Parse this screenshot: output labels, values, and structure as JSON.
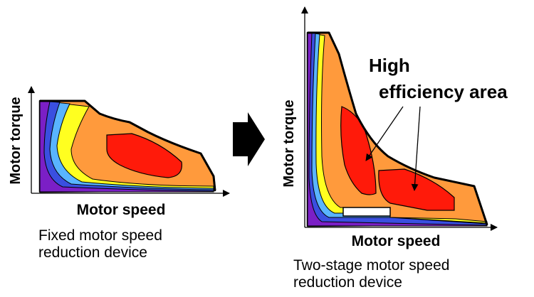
{
  "left_panel": {
    "x_axis_label": "Motor speed",
    "y_axis_label": "Motor torque",
    "caption_line1": "Fixed motor speed",
    "caption_line2": "reduction device"
  },
  "right_panel": {
    "x_axis_label": "Motor speed",
    "y_axis_label": "Motor torque",
    "callout_line1": "High",
    "callout_line2": "efficiency area",
    "caption_line1": "Two-stage motor speed",
    "caption_line2": "reduction device"
  },
  "colors": {
    "red": "#ff1a0a",
    "orange": "#ff9a3c",
    "yellow": "#ffff20",
    "light_blue": "#59b4ff",
    "blue": "#3a4fe0",
    "purple": "#7b1fc6",
    "arrow": "#000000"
  }
}
